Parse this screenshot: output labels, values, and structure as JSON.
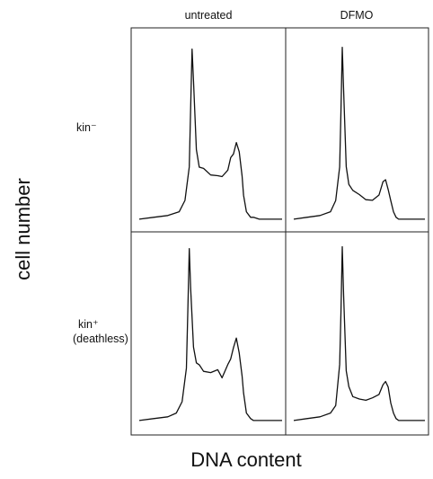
{
  "figure": {
    "column_labels": [
      "untreated",
      "DFMO"
    ],
    "row_labels": [
      [
        "kin⁻"
      ],
      [
        "kin⁺",
        "(deathless)"
      ]
    ],
    "ylabel": "cell number",
    "xlabel": "DNA content"
  },
  "colors": {
    "line": "#111111",
    "frame": "#222222",
    "background": "#ffffff"
  },
  "chart_data": {
    "type": "line",
    "xlabel": "DNA content",
    "ylabel": "cell number",
    "x_range": [
      0,
      100
    ],
    "y_range": [
      0,
      100
    ],
    "grid": false,
    "panels": [
      {
        "row": "kin⁻",
        "column": "untreated",
        "series": [
          {
            "x": [
              0,
              10,
              20,
              28,
              32,
              35,
              36,
              37,
              38,
              40,
              42,
              45,
              50,
              55,
              58,
              62,
              64,
              66,
              68,
              70,
              72,
              73,
              75,
              78,
              80,
              84,
              90,
              95,
              100
            ],
            "y": [
              1,
              2,
              3,
              5,
              10,
              30,
              60,
              92,
              75,
              38,
              30,
              27,
              24,
              25,
              23,
              27,
              33,
              37,
              42,
              36,
              25,
              15,
              5,
              2,
              2,
              1,
              1,
              1,
              1
            ]
          }
        ]
      },
      {
        "row": "kin⁻",
        "column": "DFMO",
        "series": [
          {
            "x": [
              0,
              10,
              20,
              28,
              32,
              35,
              36,
              37,
              38,
              40,
              42,
              45,
              50,
              55,
              60,
              65,
              68,
              70,
              72,
              74,
              76,
              78,
              80,
              84,
              90,
              95,
              100
            ],
            "y": [
              1,
              2,
              3,
              5,
              10,
              30,
              60,
              93,
              70,
              30,
              20,
              16,
              13,
              11,
              12,
              15,
              20,
              22,
              18,
              10,
              5,
              2,
              1,
              1,
              1,
              1,
              1
            ]
          }
        ]
      },
      {
        "row": "kin⁺ (deathless)",
        "column": "untreated",
        "series": [
          {
            "x": [
              0,
              10,
              20,
              26,
              30,
              33,
              34,
              35,
              36,
              38,
              40,
              42,
              45,
              50,
              55,
              58,
              62,
              64,
              66,
              68,
              70,
              72,
              73,
              75,
              78,
              80,
              84,
              90,
              95,
              100
            ],
            "y": [
              1,
              2,
              3,
              5,
              10,
              30,
              60,
              93,
              72,
              40,
              33,
              30,
              28,
              26,
              27,
              25,
              30,
              35,
              40,
              44,
              38,
              25,
              15,
              5,
              2,
              1,
              1,
              1,
              1,
              1
            ]
          }
        ]
      },
      {
        "row": "kin⁺ (deathless)",
        "column": "DFMO",
        "series": [
          {
            "x": [
              0,
              10,
              20,
              28,
              32,
              35,
              36,
              37,
              38,
              40,
              42,
              45,
              50,
              55,
              60,
              65,
              68,
              70,
              72,
              74,
              76,
              78,
              80,
              84,
              90,
              95,
              100
            ],
            "y": [
              1,
              2,
              3,
              5,
              10,
              30,
              60,
              94,
              68,
              28,
              18,
              15,
              13,
              11,
              12,
              15,
              20,
              23,
              18,
              10,
              5,
              2,
              1,
              1,
              1,
              1,
              1
            ]
          }
        ]
      }
    ]
  }
}
